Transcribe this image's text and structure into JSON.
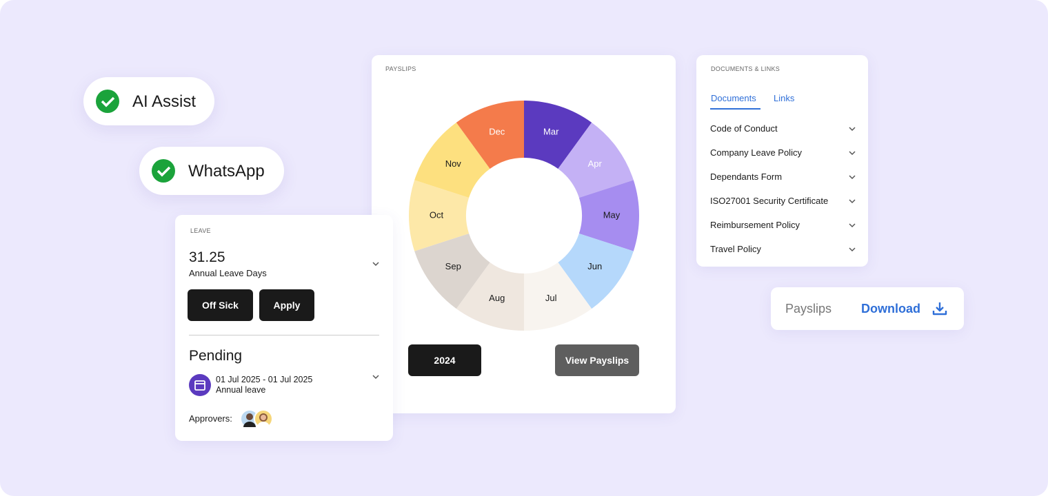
{
  "badges": [
    {
      "label": "AI Assist"
    },
    {
      "label": "WhatsApp"
    }
  ],
  "payslips_card": {
    "title": "PAYSLIPS",
    "segments": [
      {
        "label": "Mar",
        "color": "#5b3abf",
        "text_color": "#ffffff"
      },
      {
        "label": "Apr",
        "color": "#c4b1f5",
        "text_color": "#ffffff"
      },
      {
        "label": "May",
        "color": "#a68df0",
        "text_color": "#1a1a1a"
      },
      {
        "label": "Jun",
        "color": "#b5d8fb",
        "text_color": "#1a1a1a"
      },
      {
        "label": "Jul",
        "color": "#f8f4ef",
        "text_color": "#1a1a1a"
      },
      {
        "label": "Aug",
        "color": "#efe7df",
        "text_color": "#1a1a1a"
      },
      {
        "label": "Sep",
        "color": "#dcd5cf",
        "text_color": "#1a1a1a"
      },
      {
        "label": "Oct",
        "color": "#fde8a8",
        "text_color": "#1a1a1a"
      },
      {
        "label": "Nov",
        "color": "#fde07f",
        "text_color": "#1a1a1a"
      },
      {
        "label": "Dec",
        "color": "#f47b4b",
        "text_color": "#ffffff"
      }
    ],
    "year_button": "2024",
    "view_button": "View Payslips"
  },
  "leave_card": {
    "title": "LEAVE",
    "balance": 31.25,
    "balance_label": "Annual Leave Days",
    "buttons": [
      "Off Sick",
      "Apply"
    ],
    "pending_title": "Pending",
    "request_dates": "01 Jul 2025 - 01 Jul 2025",
    "request_type": "Annual leave",
    "approvers_label": "Approvers:"
  },
  "documents_card": {
    "title": "DOCUMENTS & LINKS",
    "tabs": [
      "Documents",
      "Links"
    ],
    "items": [
      "Code of Conduct",
      "Company Leave Policy",
      "Dependants Form",
      "ISO27001 Security Certificate",
      "Reimbursement Policy",
      "Travel Policy"
    ]
  },
  "download_card": {
    "label": "Payslips",
    "action": "Download"
  }
}
